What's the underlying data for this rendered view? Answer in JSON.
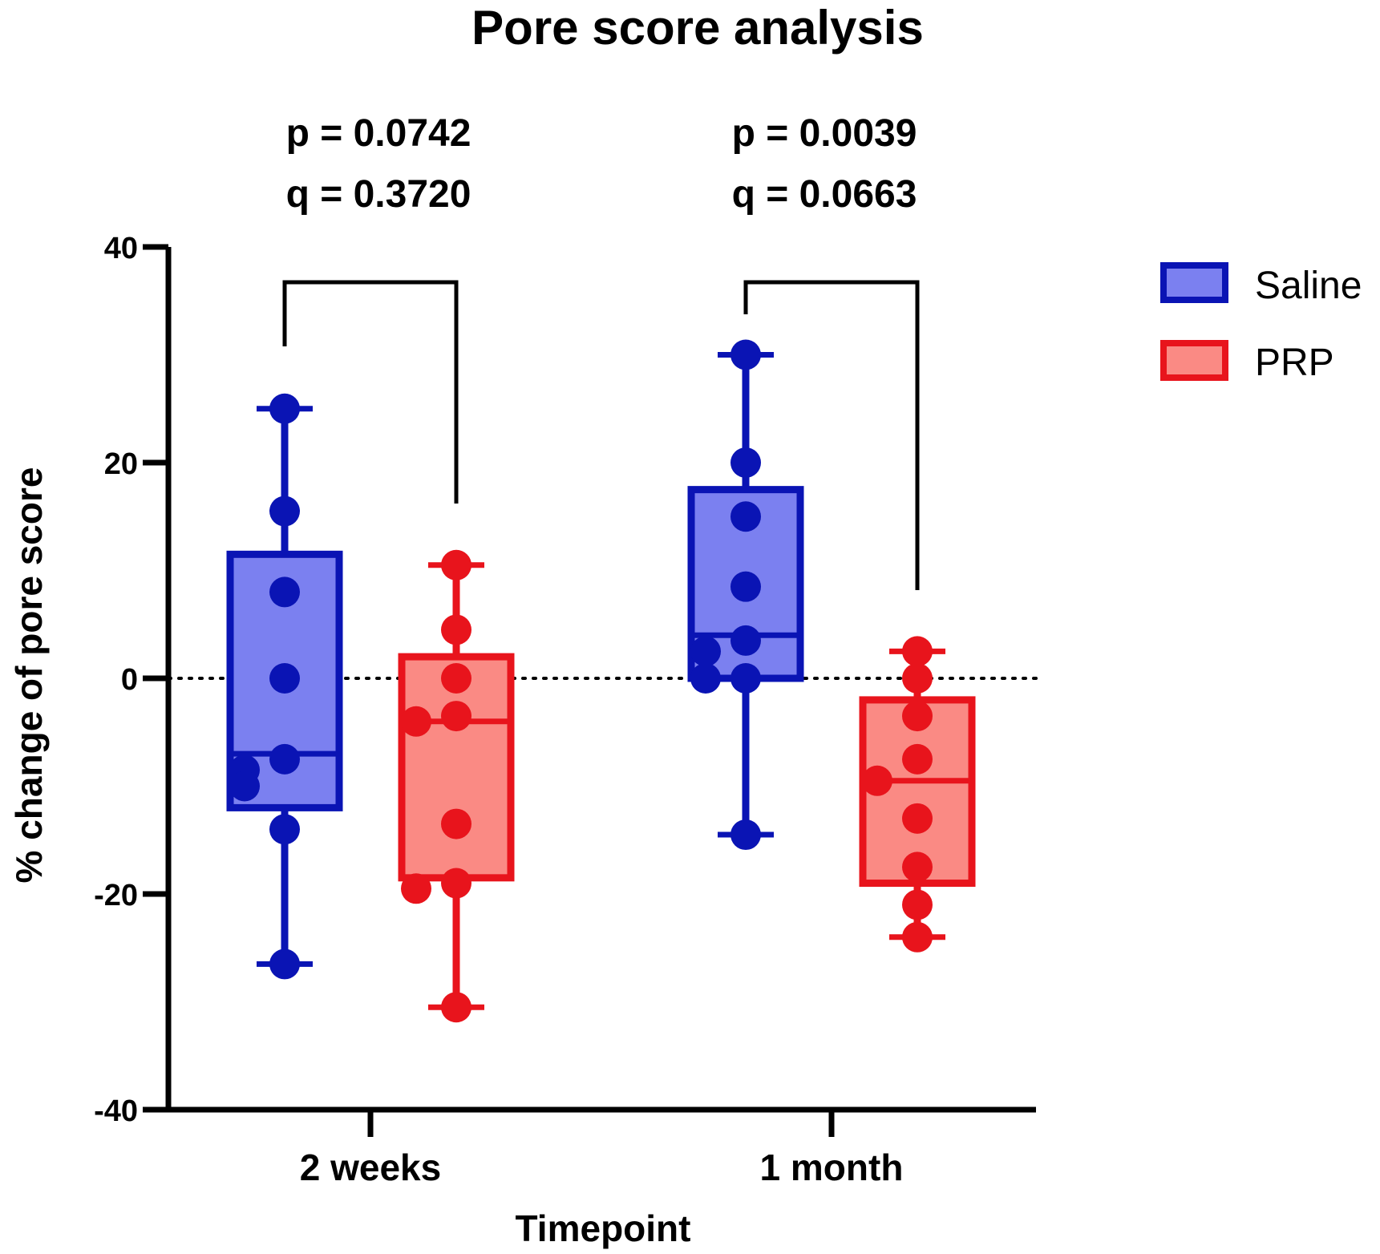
{
  "chart_data": {
    "type": "boxplot",
    "title": "Pore score analysis",
    "xlabel": "Timepoint",
    "ylabel": "% change of pore score",
    "ylim": [
      -40,
      40
    ],
    "yticks": [
      -40,
      -20,
      0,
      20,
      40
    ],
    "ytick_labels": [
      "-40",
      "-20",
      "0",
      "20",
      "40"
    ],
    "reference_line": 0,
    "categories": [
      "2 weeks",
      "1 month"
    ],
    "series": [
      {
        "name": "Saline",
        "color": "#0a14b4",
        "fill": "#7b80f0",
        "boxes": [
          {
            "min": -26.5,
            "q1": -12,
            "median": -7,
            "q3": 11.5,
            "max": 25,
            "points": [
              25,
              15.5,
              8,
              0,
              -7.5,
              -8.5,
              -10,
              -14,
              -26.5
            ]
          },
          {
            "min": -14.5,
            "q1": 0,
            "median": 4,
            "q3": 17.5,
            "max": 30,
            "points": [
              30,
              20,
              15,
              8.5,
              3.5,
              2.5,
              0,
              0,
              -14.5
            ]
          }
        ]
      },
      {
        "name": "PRP",
        "color": "#e8141c",
        "fill": "#fa8a84",
        "boxes": [
          {
            "min": -30.5,
            "q1": -18.5,
            "median": -4,
            "q3": 2,
            "max": 10.5,
            "points": [
              10.5,
              4.5,
              0,
              -3.5,
              -4,
              -13.5,
              -19,
              -19.5,
              -30.5
            ]
          },
          {
            "min": -24,
            "q1": -19,
            "median": -9.5,
            "q3": -2,
            "max": 2.5,
            "points": [
              2.5,
              0,
              -3.5,
              -7.5,
              -9.5,
              -13,
              -17.5,
              -21,
              -24
            ]
          }
        ]
      }
    ],
    "comparisons": [
      {
        "category": "2 weeks",
        "p_label": "p = 0.0742",
        "q_label": "q = 0.3720"
      },
      {
        "category": "1 month",
        "p_label": "p = 0.0039",
        "q_label": "q = 0.0663"
      }
    ]
  }
}
